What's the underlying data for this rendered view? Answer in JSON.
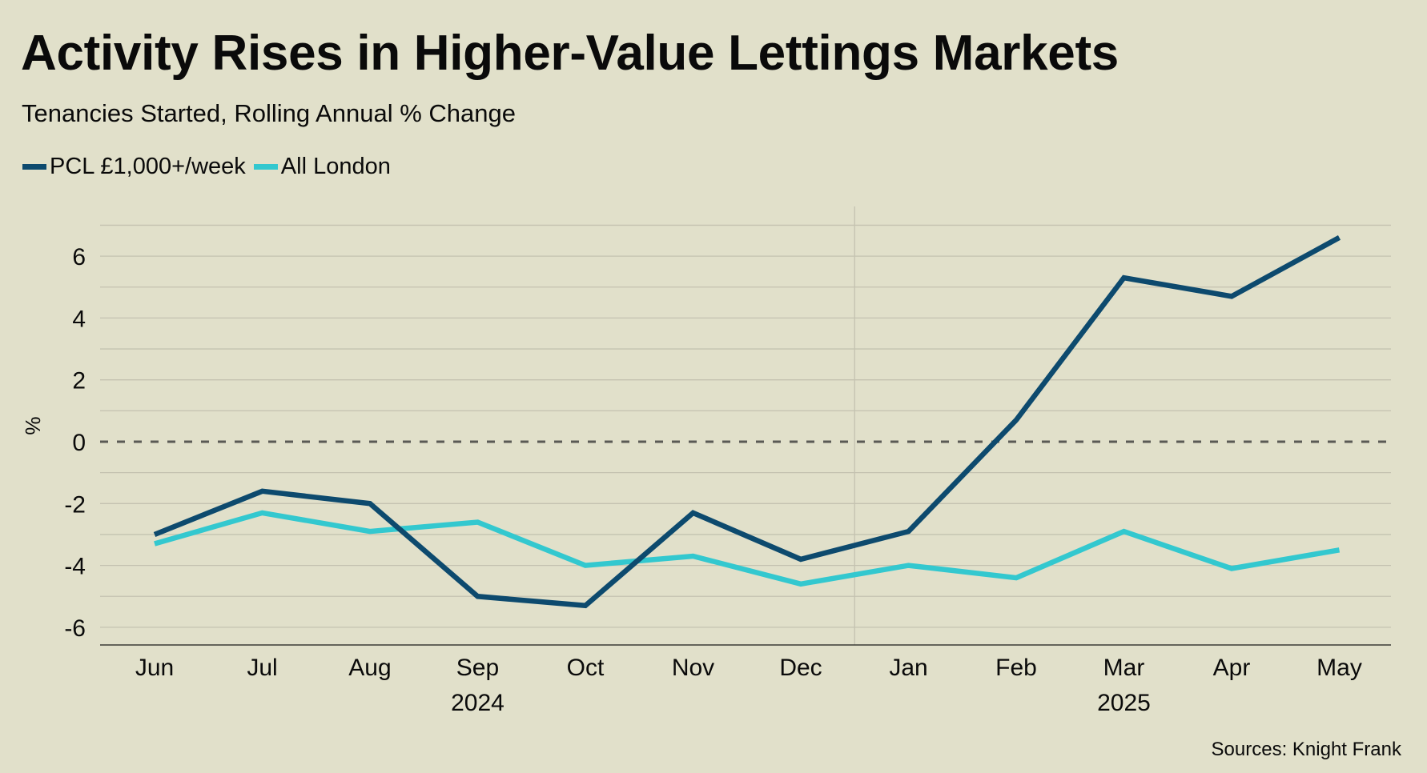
{
  "header": {
    "title": "Activity Rises in Higher-Value Lettings Markets",
    "subtitle": "Tenancies Started, Rolling Annual % Change"
  },
  "legend": [
    {
      "label": "PCL £1,000+/week",
      "color": "#0D4A6E"
    },
    {
      "label": "All London",
      "color": "#33C8CF"
    }
  ],
  "footer": {
    "sources": "Sources: Knight Frank"
  },
  "chart_data": {
    "type": "line",
    "title": "Activity Rises in Higher-Value Lettings Markets",
    "subtitle": "Tenancies Started, Rolling Annual % Change",
    "xlabel": "",
    "ylabel": "%",
    "categories": [
      "Jun",
      "Jul",
      "Aug",
      "Sep",
      "Oct",
      "Nov",
      "Dec",
      "Jan",
      "Feb",
      "Mar",
      "Apr",
      "May"
    ],
    "year_groups": [
      {
        "label": "2024",
        "start": 0,
        "end": 6
      },
      {
        "label": "2025",
        "start": 7,
        "end": 11
      }
    ],
    "series": [
      {
        "name": "PCL £1,000+/week",
        "color": "#0D4A6E",
        "values": [
          -3.0,
          -1.6,
          -2.0,
          -5.0,
          -5.3,
          -2.3,
          -3.8,
          -2.9,
          0.7,
          5.3,
          4.7,
          6.6
        ]
      },
      {
        "name": "All London",
        "color": "#33C8CF",
        "values": [
          -3.3,
          -2.3,
          -2.9,
          -2.6,
          -4.0,
          -3.7,
          -4.6,
          -4.0,
          -4.4,
          -2.9,
          -4.1,
          -3.5
        ]
      }
    ],
    "ylim": [
      -6.6,
      7
    ],
    "yticks": [
      6,
      4,
      2,
      0,
      -2,
      -4,
      -6
    ],
    "ytick_labels": [
      "6",
      "4",
      "2",
      "0",
      "-2",
      "-4",
      "-6"
    ],
    "minor_gridlines_step": 1,
    "grid": true,
    "zero_line": "dashed",
    "legend_position": "top-left",
    "sources": "Sources: Knight Frank"
  }
}
